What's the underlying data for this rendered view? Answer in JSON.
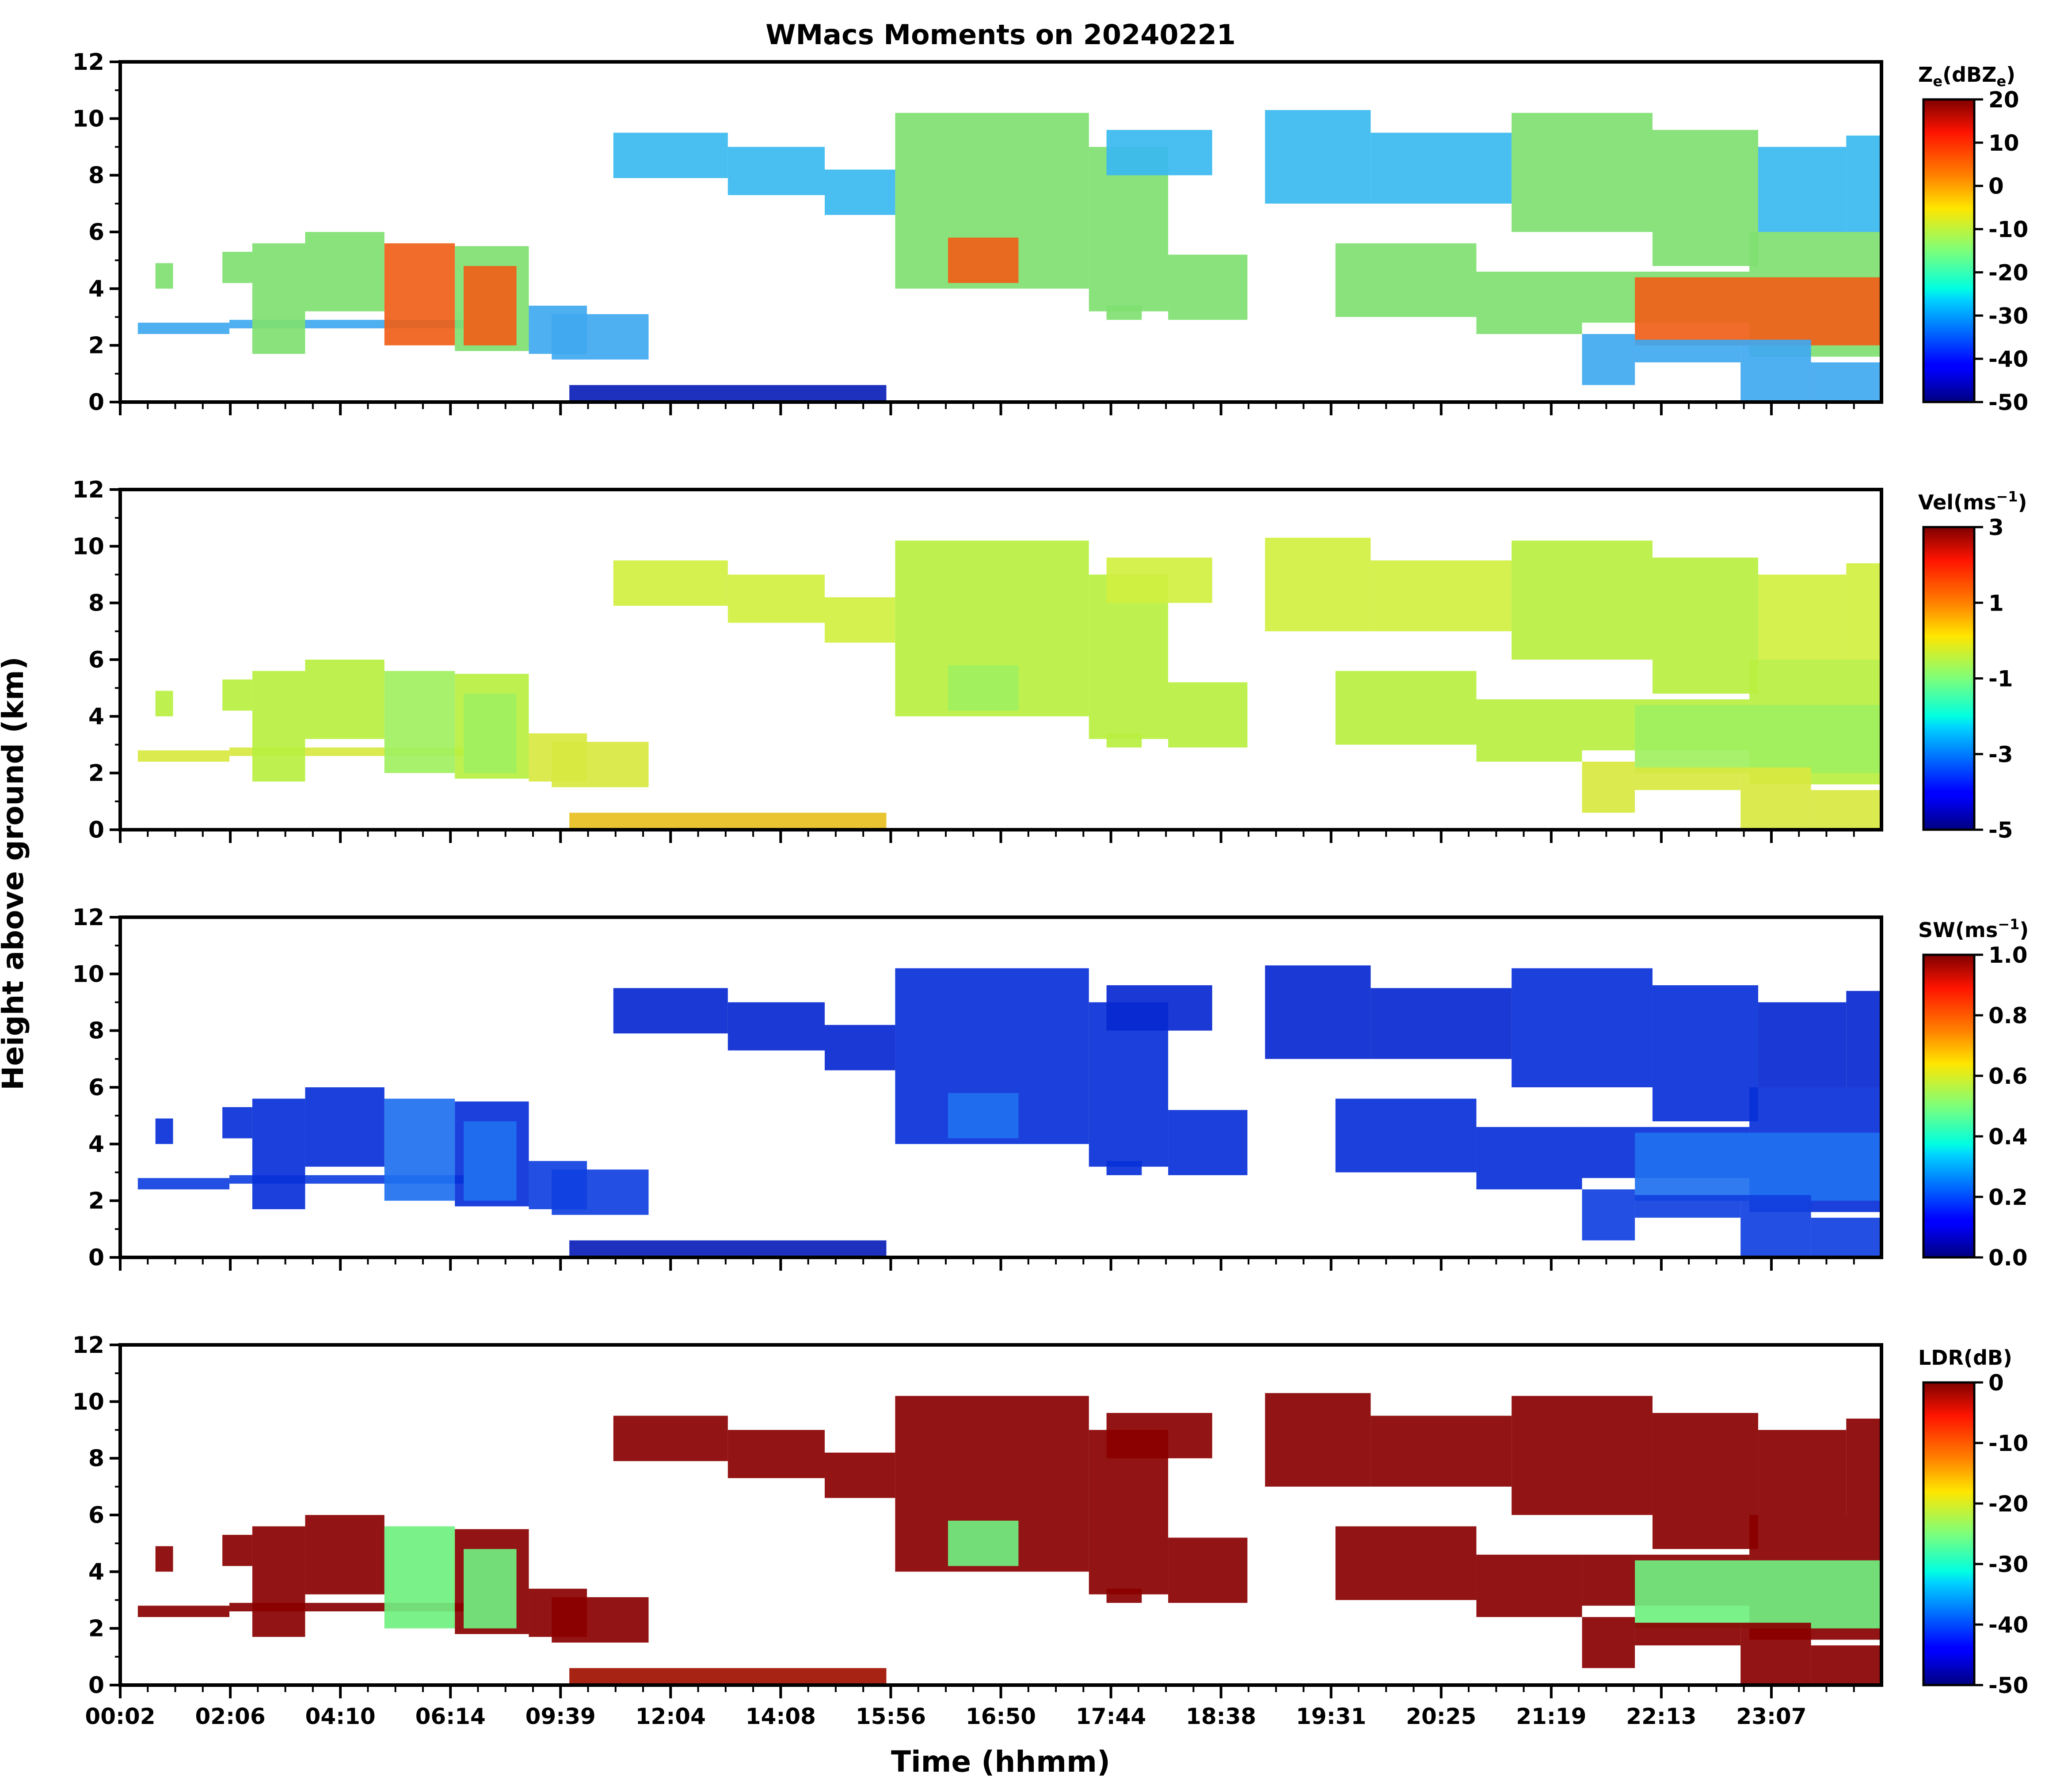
{
  "figure": {
    "title": "WMacs Moments on 20240221",
    "xlabel": "Time (hhmm)",
    "ylabel": "Height above ground (km)"
  },
  "chart_data": {
    "type": "heatmap",
    "x_ticks": [
      "00:02",
      "02:06",
      "04:10",
      "06:14",
      "09:39",
      "12:04",
      "14:08",
      "15:56",
      "16:50",
      "17:44",
      "18:38",
      "19:31",
      "20:25",
      "21:19",
      "22:13",
      "23:07"
    ],
    "y_ticks": [
      "0",
      "2",
      "4",
      "6",
      "8",
      "10",
      "12"
    ],
    "ylim": [
      0,
      12
    ],
    "panels": [
      {
        "id": "ze",
        "label_main": "Z",
        "label_sub": "e",
        "label_mid": "(dBZ",
        "label_sub2": "e",
        "label_end": ")",
        "cbar_ticks": [
          "20",
          "10",
          "0",
          "-10",
          "-20",
          "-30",
          "-40",
          "-50"
        ],
        "vmin": -50,
        "vmax": 20,
        "colors": {
          "clutter": "#0a20b8",
          "stratus": "#3fa8f0",
          "mid": "#7fe070",
          "core": "#f06018",
          "high": "#38b8f0"
        }
      },
      {
        "id": "vel",
        "label_main": "Vel(ms",
        "label_sup": "−1",
        "label_end": ")",
        "cbar_ticks": [
          "3",
          "1",
          "-1",
          "-3",
          "-5"
        ],
        "vmin": -5,
        "vmax": 3,
        "colors": {
          "clutter": "#e8c020",
          "stratus": "#d8e840",
          "mid": "#b8f040",
          "core": "#a0f060",
          "high": "#d0f040"
        }
      },
      {
        "id": "sw",
        "label_main": "SW(ms",
        "label_sup": "−1",
        "label_end": ")",
        "cbar_ticks": [
          "1.0",
          "0.8",
          "0.6",
          "0.4",
          "0.2",
          "0.0"
        ],
        "vmin": 0,
        "vmax": 1,
        "colors": {
          "clutter": "#0a20b8",
          "stratus": "#1040e0",
          "mid": "#0830d8",
          "core": "#2070f0",
          "high": "#0828d0"
        }
      },
      {
        "id": "ldr",
        "label_main": "LDR(dB)",
        "cbar_ticks": [
          "0",
          "-10",
          "-20",
          "-30",
          "-40",
          "-50"
        ],
        "vmin": -50,
        "vmax": 0,
        "colors": {
          "clutter": "#a01000",
          "stratus": "#8a0000",
          "mid": "#8a0000",
          "core": "#70f080",
          "high": "#8a0000"
        }
      }
    ]
  }
}
